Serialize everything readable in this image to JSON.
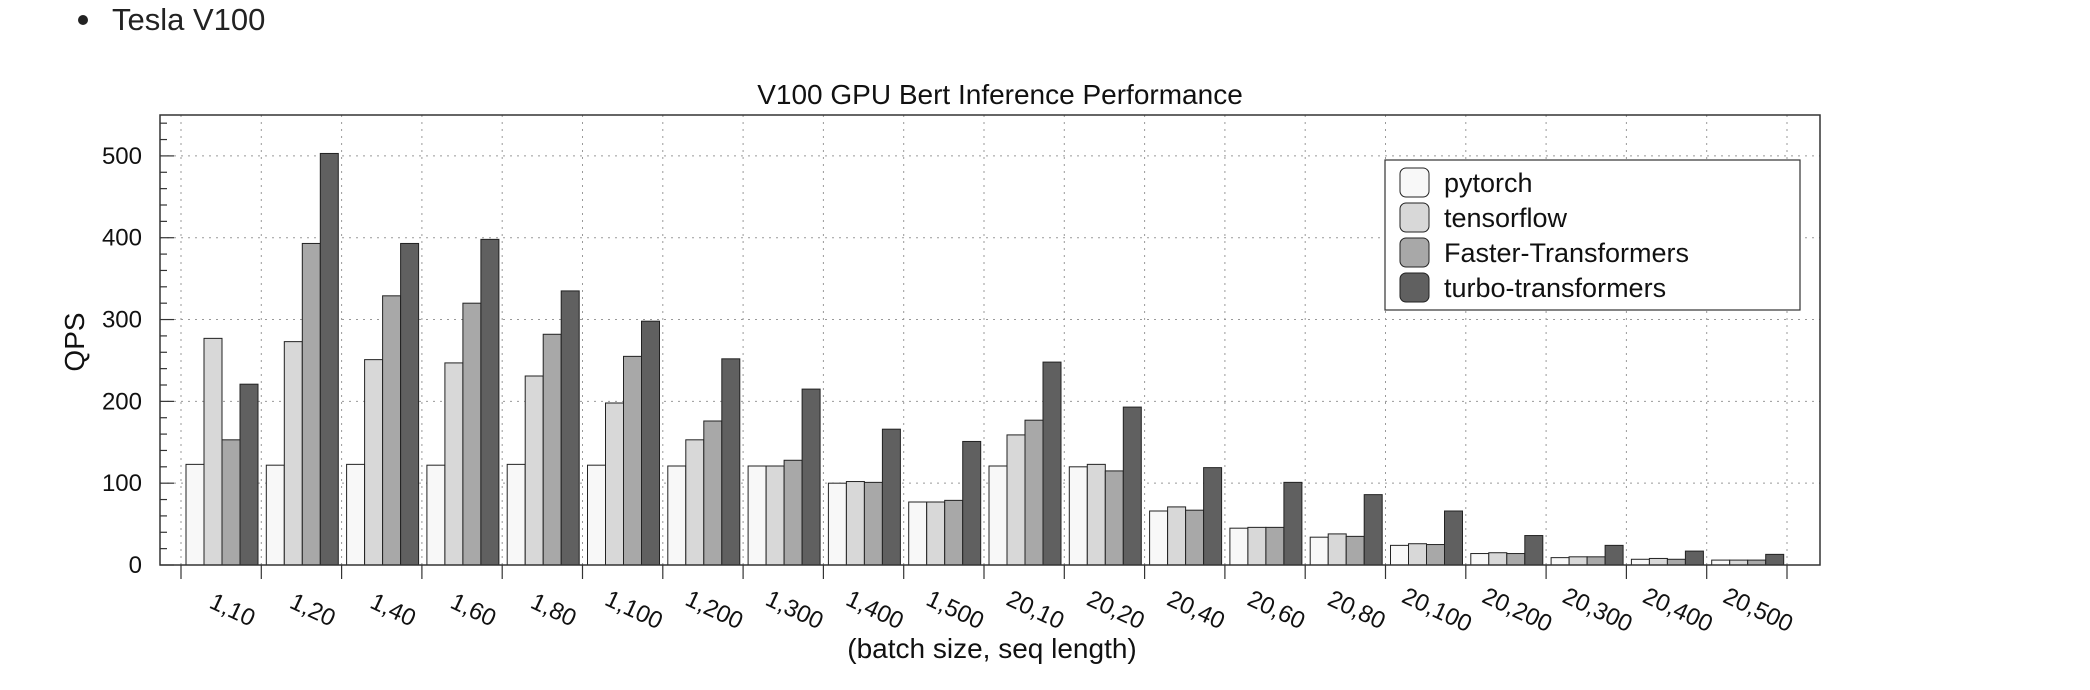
{
  "bullet": {
    "text": "Tesla V100"
  },
  "colors": {
    "pytorch": "#f8f8f8",
    "tensorflow": "#d8d8d8",
    "faster": "#a8a8a8",
    "turbo": "#606060"
  },
  "chart_data": {
    "type": "bar",
    "title": "V100 GPU Bert Inference Performance",
    "xlabel": "(batch size, seq length)",
    "ylabel": "QPS",
    "ylim": [
      0,
      550
    ],
    "yticks": [
      "0",
      "100",
      "200",
      "300",
      "400",
      "500"
    ],
    "grid": true,
    "legend_position": "top-right",
    "categories": [
      "1,10",
      "1,20",
      "1,40",
      "1,60",
      "1,80",
      "1,100",
      "1,200",
      "1,300",
      "1,400",
      "1,500",
      "20,10",
      "20,20",
      "20,40",
      "20,60",
      "20,80",
      "20,100",
      "20,200",
      "20,300",
      "20,400",
      "20,500"
    ],
    "series": [
      {
        "name": "pytorch",
        "values": [
          123,
          122,
          123,
          122,
          123,
          122,
          121,
          121,
          100,
          77,
          121,
          120,
          66,
          45,
          34,
          24,
          14,
          9,
          7,
          6
        ]
      },
      {
        "name": "tensorflow",
        "values": [
          277,
          273,
          251,
          247,
          231,
          198,
          153,
          121,
          102,
          77,
          159,
          123,
          71,
          46,
          38,
          26,
          15,
          10,
          8,
          6
        ]
      },
      {
        "name": "Faster-Transformers",
        "values": [
          153,
          393,
          329,
          320,
          282,
          255,
          176,
          128,
          101,
          79,
          177,
          115,
          67,
          46,
          35,
          25,
          14,
          10,
          7,
          6
        ]
      },
      {
        "name": "turbo-transformers",
        "values": [
          221,
          503,
          393,
          398,
          335,
          298,
          252,
          215,
          166,
          151,
          248,
          193,
          119,
          101,
          86,
          66,
          36,
          24,
          17,
          13
        ]
      }
    ]
  }
}
